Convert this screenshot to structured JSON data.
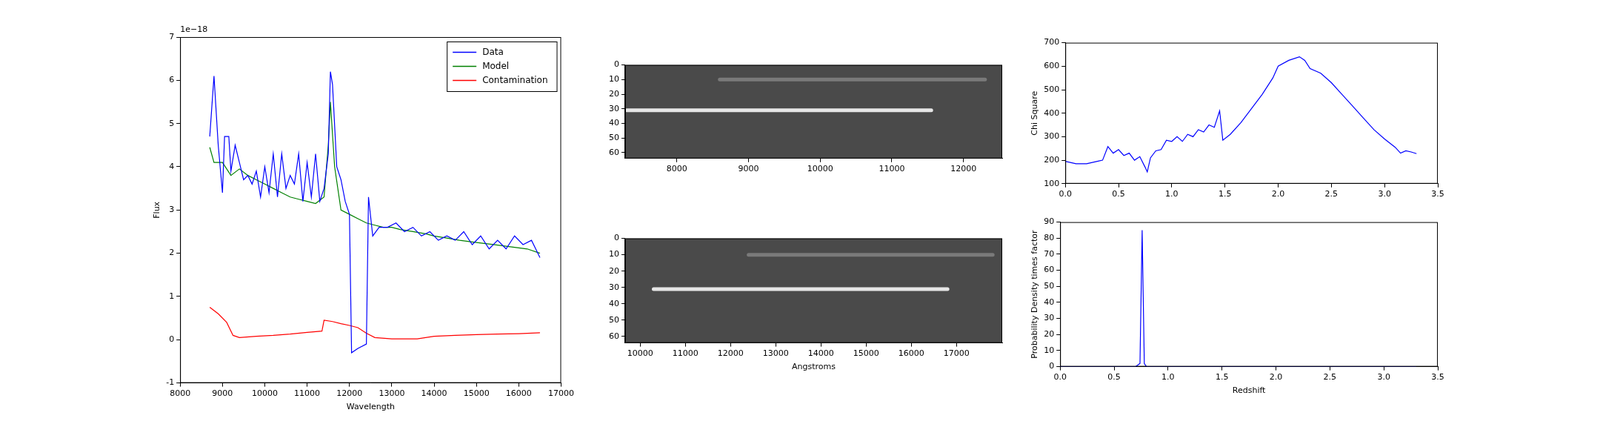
{
  "chart_data": [
    {
      "type": "line",
      "x_label": "Wavelength",
      "y_label": "Flux",
      "annotations": [
        "1e−18"
      ],
      "xlim": [
        8000,
        17000
      ],
      "xticks": [
        8000,
        9000,
        10000,
        11000,
        12000,
        13000,
        14000,
        15000,
        16000,
        17000
      ],
      "ylim": [
        -1,
        7
      ],
      "yticks": [
        -1,
        0,
        1,
        2,
        3,
        4,
        5,
        6,
        7
      ],
      "grid": false,
      "legend": "upper right",
      "series": [
        {
          "name": "Data",
          "color": "#0000ff",
          "x": [
            8700,
            8800,
            8900,
            9000,
            9050,
            9150,
            9200,
            9300,
            9400,
            9500,
            9600,
            9700,
            9800,
            9900,
            10000,
            10100,
            10200,
            10300,
            10400,
            10500,
            10600,
            10700,
            10800,
            10900,
            11000,
            11100,
            11200,
            11300,
            11400,
            11500,
            11550,
            11600,
            11700,
            11800,
            11900,
            12000,
            12050,
            12200,
            12400,
            12450,
            12550,
            12700,
            12900,
            13100,
            13300,
            13500,
            13700,
            13900,
            14100,
            14300,
            14500,
            14700,
            14900,
            15100,
            15300,
            15500,
            15700,
            15900,
            16100,
            16300,
            16400,
            16500
          ],
          "values": [
            4.7,
            6.1,
            4.5,
            3.4,
            4.7,
            4.7,
            3.9,
            4.5,
            4.1,
            3.7,
            3.8,
            3.6,
            3.9,
            3.3,
            4.0,
            3.4,
            4.3,
            3.3,
            4.3,
            3.5,
            3.8,
            3.6,
            4.3,
            3.2,
            4.1,
            3.3,
            4.3,
            3.2,
            3.5,
            4.3,
            6.2,
            5.9,
            4.0,
            3.7,
            3.2,
            2.9,
            -0.3,
            -0.2,
            -0.1,
            3.3,
            2.4,
            2.6,
            2.6,
            2.7,
            2.5,
            2.6,
            2.4,
            2.5,
            2.3,
            2.4,
            2.3,
            2.5,
            2.2,
            2.4,
            2.1,
            2.3,
            2.1,
            2.4,
            2.2,
            2.3,
            2.1,
            1.9
          ]
        },
        {
          "name": "Model",
          "color": "#008000",
          "x": [
            8700,
            8800,
            9000,
            9200,
            9400,
            9600,
            9800,
            10000,
            10200,
            10400,
            10600,
            10800,
            11000,
            11200,
            11400,
            11500,
            11550,
            11650,
            11800,
            12000,
            12200,
            12400,
            12600,
            12800,
            13000,
            13200,
            13500,
            13800,
            14000,
            14300,
            14600,
            15000,
            15400,
            15800,
            16200,
            16500
          ],
          "values": [
            4.45,
            4.1,
            4.1,
            3.8,
            3.95,
            3.8,
            3.7,
            3.6,
            3.5,
            3.4,
            3.3,
            3.25,
            3.2,
            3.15,
            3.3,
            4.5,
            5.5,
            4.0,
            3.0,
            2.9,
            2.8,
            2.7,
            2.65,
            2.6,
            2.6,
            2.55,
            2.5,
            2.45,
            2.4,
            2.35,
            2.3,
            2.25,
            2.2,
            2.15,
            2.1,
            2.0
          ]
        },
        {
          "name": "Contamination",
          "color": "#ff0000",
          "x": [
            8700,
            8900,
            9100,
            9250,
            9400,
            9800,
            10200,
            10600,
            11000,
            11350,
            11400,
            11600,
            11800,
            12000,
            12200,
            12400,
            12600,
            13000,
            13600,
            14000,
            14500,
            15000,
            15500,
            16000,
            16500
          ],
          "values": [
            0.75,
            0.6,
            0.4,
            0.1,
            0.05,
            0.08,
            0.1,
            0.13,
            0.17,
            0.2,
            0.45,
            0.42,
            0.37,
            0.33,
            0.28,
            0.15,
            0.05,
            0.02,
            0.02,
            0.08,
            0.1,
            0.12,
            0.13,
            0.14,
            0.16
          ]
        }
      ]
    },
    {
      "type": "image",
      "color": "#4a4a4a",
      "xlim": [
        7280,
        12540
      ],
      "xticks": [
        8000,
        9000,
        10000,
        11000,
        12000
      ],
      "ylim": [
        64,
        0
      ],
      "yticks": [
        0,
        10,
        20,
        30,
        40,
        50,
        60
      ],
      "grid": false,
      "traces": [
        {
          "y": 31,
          "x_start": 7300,
          "x_end": 11550,
          "color": "#e6e6e6"
        },
        {
          "y": 10,
          "x_start": 8600,
          "x_end": 12300,
          "color": "#7a7a7a"
        }
      ]
    },
    {
      "type": "image",
      "color": "#4a4a4a",
      "x_label": "Angstroms",
      "xlim": [
        9670,
        18010
      ],
      "xticks": [
        10000,
        11000,
        12000,
        13000,
        14000,
        15000,
        16000,
        17000
      ],
      "ylim": [
        64,
        0
      ],
      "yticks": [
        0,
        10,
        20,
        30,
        40,
        50,
        60
      ],
      "grid": false,
      "traces": [
        {
          "y": 31,
          "x_start": 10300,
          "x_end": 16800,
          "color": "#e6e6e6"
        },
        {
          "y": 10,
          "x_start": 12400,
          "x_end": 17800,
          "color": "#7a7a7a"
        }
      ]
    },
    {
      "type": "line",
      "y_label": "Chi Square",
      "xlim": [
        0,
        3.5
      ],
      "xticks": [
        {
          "value": 0,
          "label": "0.0"
        },
        0.5,
        {
          "value": 1,
          "label": "1.0"
        },
        1.5,
        {
          "value": 2,
          "label": "2.0"
        },
        2.5,
        {
          "value": 3,
          "label": "3.0"
        },
        3.5
      ],
      "ylim": [
        100,
        700
      ],
      "yticks": [
        100,
        200,
        300,
        400,
        500,
        600,
        700
      ],
      "grid": false,
      "series": [
        {
          "name": "Chi Square",
          "color": "#0000ff",
          "x": [
            0,
            0.1,
            0.2,
            0.3,
            0.35,
            0.4,
            0.45,
            0.5,
            0.55,
            0.6,
            0.65,
            0.7,
            0.75,
            0.77,
            0.8,
            0.85,
            0.9,
            0.95,
            1.0,
            1.05,
            1.1,
            1.15,
            1.2,
            1.25,
            1.3,
            1.35,
            1.4,
            1.45,
            1.48,
            1.55,
            1.65,
            1.75,
            1.85,
            1.95,
            2.0,
            2.1,
            2.2,
            2.25,
            2.3,
            2.4,
            2.5,
            2.6,
            2.7,
            2.8,
            2.9,
            3.0,
            3.1,
            3.15,
            3.2,
            3.25,
            3.3
          ],
          "values": [
            195,
            185,
            185,
            195,
            200,
            258,
            230,
            245,
            220,
            230,
            200,
            215,
            170,
            150,
            210,
            240,
            245,
            285,
            280,
            300,
            280,
            310,
            300,
            330,
            320,
            350,
            340,
            410,
            285,
            310,
            360,
            420,
            480,
            550,
            600,
            625,
            640,
            625,
            590,
            570,
            530,
            480,
            430,
            380,
            330,
            290,
            255,
            230,
            240,
            235,
            228
          ]
        }
      ]
    },
    {
      "type": "line",
      "x_label": "Redshift",
      "y_label": "Probability Density times factor",
      "xlim": [
        0,
        3.5
      ],
      "xticks": [
        {
          "value": 0,
          "label": "0.0"
        },
        0.5,
        {
          "value": 1,
          "label": "1.0"
        },
        1.5,
        {
          "value": 2,
          "label": "2.0"
        },
        2.5,
        {
          "value": 3,
          "label": "3.0"
        },
        3.5
      ],
      "ylim": [
        0,
        90
      ],
      "yticks": [
        0,
        10,
        20,
        30,
        40,
        50,
        60,
        70,
        80,
        90
      ],
      "grid": false,
      "series": [
        {
          "name": "Probability Density times factor",
          "color": "#0000ff",
          "x": [
            0,
            0.7,
            0.74,
            0.76,
            0.78,
            0.8,
            3.3
          ],
          "values": [
            0,
            0,
            2,
            85,
            2,
            0,
            0
          ]
        }
      ]
    }
  ]
}
